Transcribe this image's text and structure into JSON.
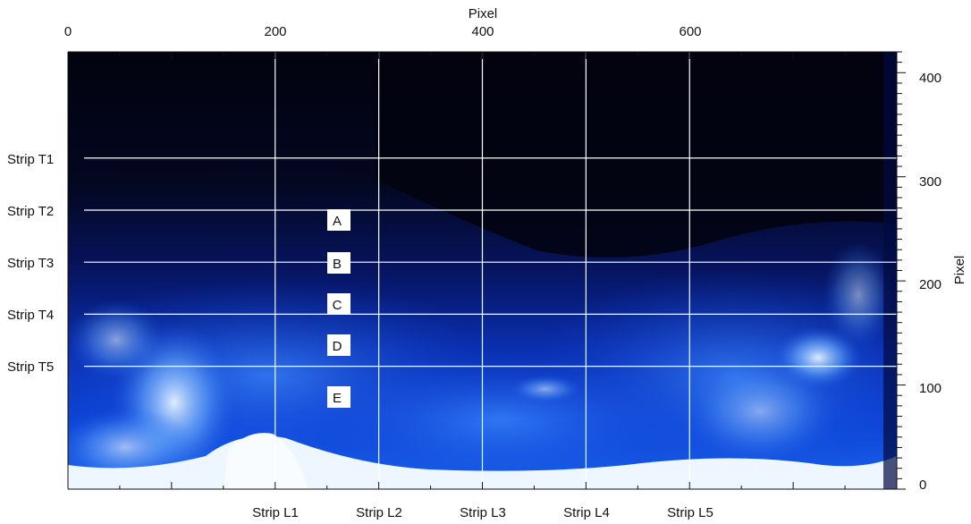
{
  "figure": {
    "top_axis_title": "Pixel",
    "right_axis_title": "Pixel",
    "x_ticks": [
      "0",
      "200",
      "400",
      "600"
    ],
    "y_ticks": [
      "400",
      "300",
      "200",
      "100",
      "0"
    ],
    "horizontal_strips": [
      "Strip T1",
      "Strip T2",
      "Strip T3",
      "Strip T4",
      "Strip T5"
    ],
    "vertical_strips": [
      "Strip L1",
      "Strip L2",
      "Strip L3",
      "Strip L4",
      "Strip L5"
    ],
    "regions": [
      "A",
      "B",
      "C",
      "D",
      "E"
    ]
  },
  "chart_data": {
    "type": "heatmap",
    "xlabel": "Pixel",
    "ylabel": "Pixel",
    "xlim": [
      0,
      800
    ],
    "ylim": [
      0,
      420
    ],
    "x_tick_values": [
      0,
      200,
      400,
      600
    ],
    "y_tick_values": [
      0,
      100,
      200,
      300,
      400
    ],
    "horizontal_strip_y": [
      318,
      268,
      218,
      168,
      118
    ],
    "vertical_strip_x": [
      200,
      300,
      400,
      500,
      600
    ],
    "region_positions": [
      {
        "label": "A",
        "x": 260,
        "y": 255
      },
      {
        "label": "B",
        "x": 260,
        "y": 214
      },
      {
        "label": "C",
        "x": 260,
        "y": 174
      },
      {
        "label": "D",
        "x": 260,
        "y": 134
      },
      {
        "label": "E",
        "x": 260,
        "y": 85
      }
    ],
    "colormap": [
      "#020418",
      "#0a1a6e",
      "#0c3fd0",
      "#3a86f0",
      "#f4fbff"
    ]
  }
}
